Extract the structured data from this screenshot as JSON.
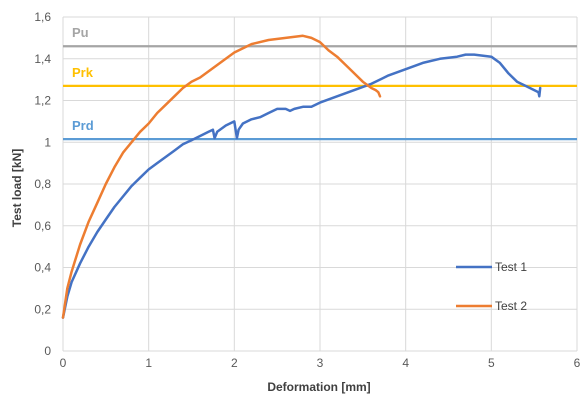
{
  "chart_data": {
    "type": "line",
    "title": "",
    "xlabel": "Deformation [mm]",
    "ylabel": "Test load [kN]",
    "xlim": [
      0,
      6
    ],
    "ylim": [
      0,
      1.6
    ],
    "x_ticks": [
      "0",
      "1",
      "2",
      "3",
      "4",
      "5",
      "6"
    ],
    "y_ticks": [
      "0",
      "0,2",
      "0,4",
      "0,6",
      "0,8",
      "1",
      "1,2",
      "1,4",
      "1,6"
    ],
    "grid": "vertical-and-horizontal",
    "legend_position": "bottom-right-inside",
    "reference_lines": [
      {
        "label": "Pu",
        "y": 1.46,
        "color": "#a5a5a5"
      },
      {
        "label": "Prk",
        "y": 1.27,
        "color": "#ffc000"
      },
      {
        "label": "Prd",
        "y": 1.015,
        "color": "#5b9bd5"
      }
    ],
    "series": [
      {
        "name": "Test 1",
        "color": "#4472c4",
        "x": [
          0,
          0.05,
          0.1,
          0.2,
          0.3,
          0.4,
          0.5,
          0.6,
          0.7,
          0.8,
          0.9,
          1.0,
          1.1,
          1.2,
          1.3,
          1.4,
          1.5,
          1.6,
          1.7,
          1.75,
          1.77,
          1.8,
          1.9,
          2.0,
          2.03,
          2.05,
          2.1,
          2.2,
          2.3,
          2.4,
          2.5,
          2.6,
          2.65,
          2.7,
          2.8,
          2.9,
          3.0,
          3.2,
          3.4,
          3.6,
          3.8,
          4.0,
          4.2,
          4.4,
          4.6,
          4.7,
          4.8,
          5.0,
          5.1,
          5.2,
          5.3,
          5.4,
          5.5,
          5.55,
          5.56,
          5.57
        ],
        "y": [
          0.16,
          0.26,
          0.33,
          0.42,
          0.5,
          0.57,
          0.63,
          0.69,
          0.74,
          0.79,
          0.83,
          0.87,
          0.9,
          0.93,
          0.96,
          0.99,
          1.01,
          1.03,
          1.05,
          1.06,
          1.02,
          1.05,
          1.08,
          1.1,
          1.02,
          1.06,
          1.09,
          1.11,
          1.12,
          1.14,
          1.16,
          1.16,
          1.15,
          1.16,
          1.17,
          1.17,
          1.19,
          1.22,
          1.25,
          1.28,
          1.32,
          1.35,
          1.38,
          1.4,
          1.41,
          1.42,
          1.42,
          1.41,
          1.38,
          1.33,
          1.29,
          1.27,
          1.25,
          1.24,
          1.22,
          1.26
        ]
      },
      {
        "name": "Test 2",
        "color": "#ed7d31",
        "x": [
          0,
          0.05,
          0.1,
          0.2,
          0.3,
          0.4,
          0.5,
          0.6,
          0.7,
          0.8,
          0.9,
          1.0,
          1.1,
          1.2,
          1.3,
          1.4,
          1.5,
          1.6,
          1.8,
          2.0,
          2.2,
          2.4,
          2.6,
          2.8,
          2.9,
          3.0,
          3.1,
          3.2,
          3.3,
          3.4,
          3.5,
          3.6,
          3.65,
          3.68,
          3.7
        ],
        "y": [
          0.16,
          0.3,
          0.38,
          0.51,
          0.62,
          0.71,
          0.8,
          0.88,
          0.95,
          1.0,
          1.05,
          1.09,
          1.14,
          1.18,
          1.22,
          1.26,
          1.29,
          1.31,
          1.37,
          1.43,
          1.47,
          1.49,
          1.5,
          1.51,
          1.5,
          1.48,
          1.44,
          1.41,
          1.37,
          1.33,
          1.29,
          1.26,
          1.25,
          1.24,
          1.22
        ]
      }
    ]
  }
}
